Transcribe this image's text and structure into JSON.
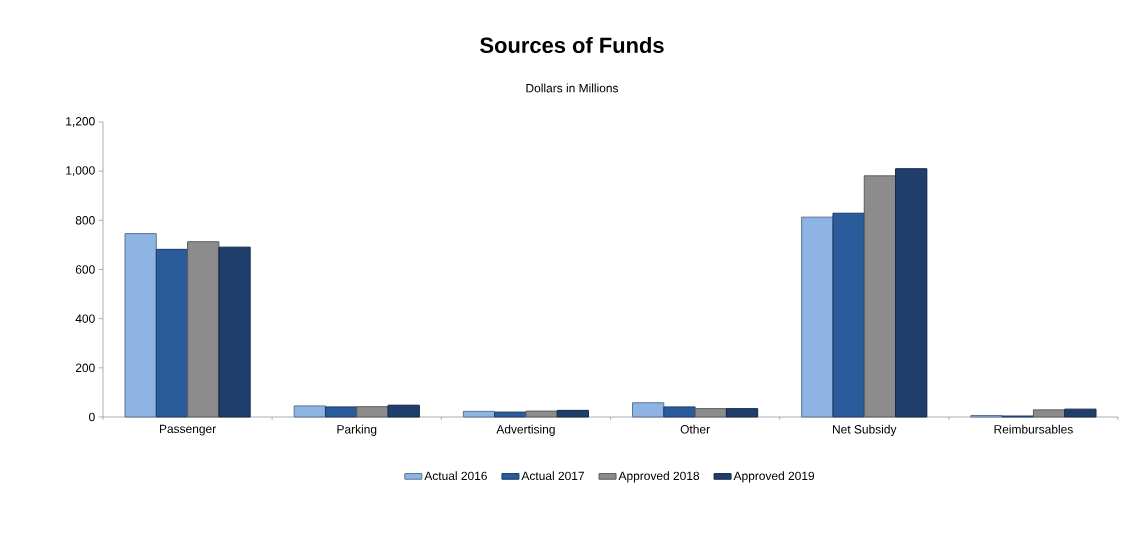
{
  "chart_data": {
    "type": "bar",
    "title": "Sources of Funds",
    "subtitle": "Dollars in Millions",
    "categories": [
      "Passenger",
      "Parking",
      "Advertising",
      "Other",
      "Net Subsidy",
      "Reimbursables"
    ],
    "series": [
      {
        "name": "Actual 2016",
        "color": "#8eb4e3",
        "values": [
          746,
          45,
          23,
          58,
          813,
          6
        ]
      },
      {
        "name": "Actual 2017",
        "color": "#2a5b9b",
        "values": [
          682,
          41,
          20,
          41,
          829,
          4
        ]
      },
      {
        "name": "Approved 2018",
        "color": "#8c8c8c",
        "values": [
          713,
          42,
          24,
          34,
          981,
          29
        ]
      },
      {
        "name": "Approved 2019",
        "color": "#1f3e6b",
        "values": [
          691,
          48,
          27,
          34,
          1010,
          32
        ]
      }
    ],
    "ylim": [
      0,
      1200
    ],
    "yticks": [
      0,
      200,
      400,
      600,
      800,
      {
        "value": 1000,
        "label": "1,000"
      },
      {
        "value": 1200,
        "label": "1,200"
      }
    ],
    "grid": false,
    "legend": "bottom"
  }
}
